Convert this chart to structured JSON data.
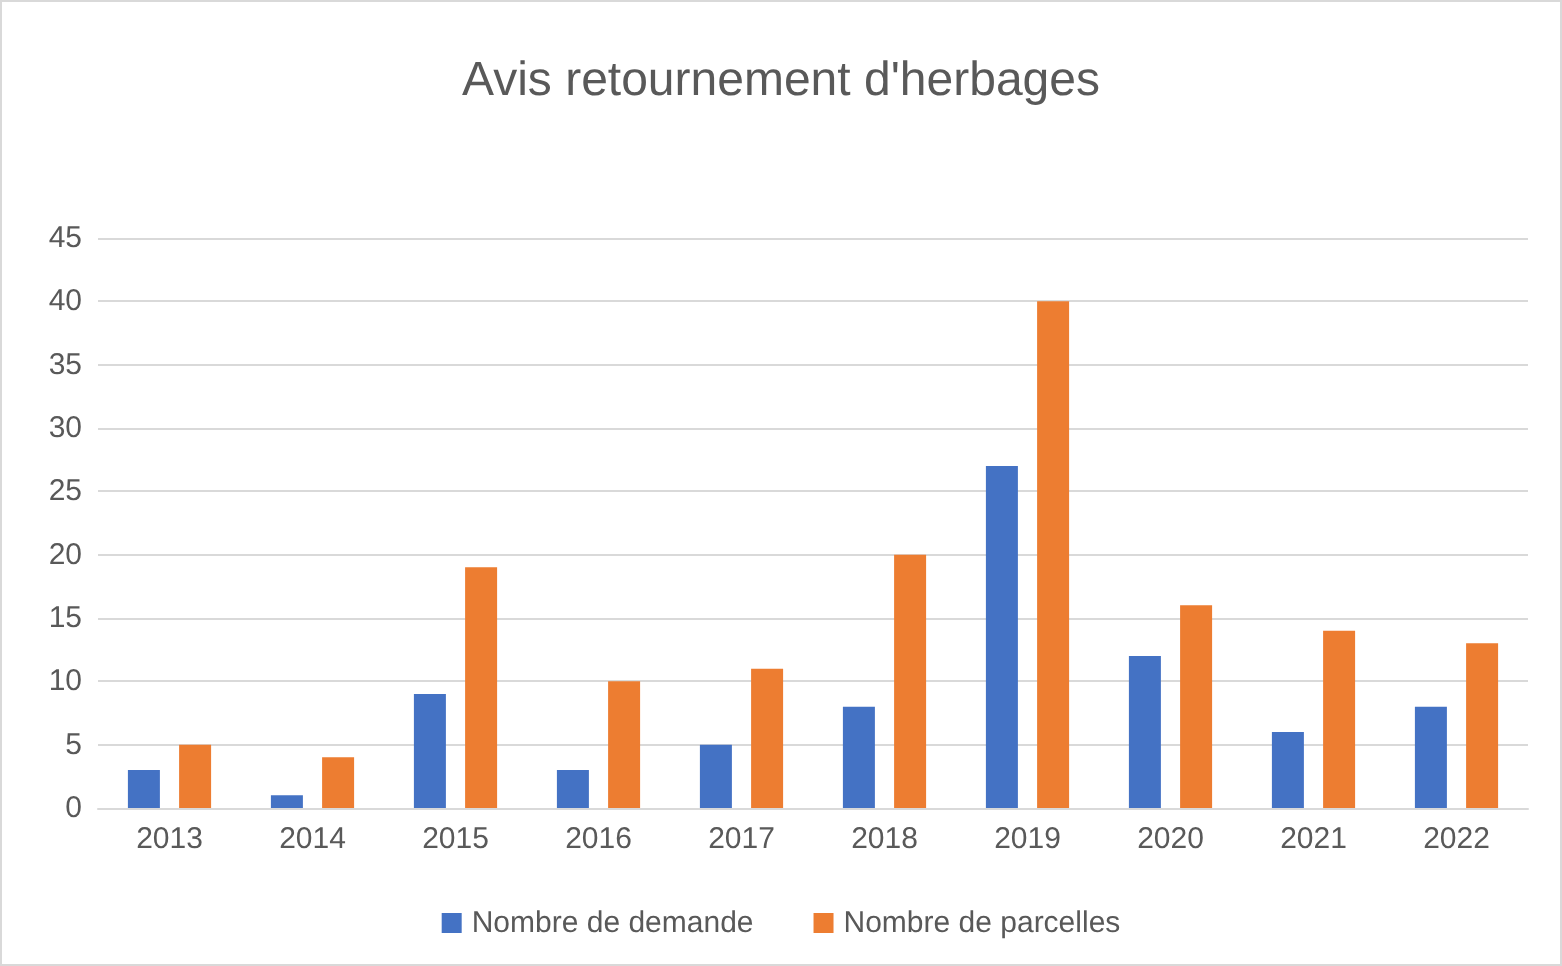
{
  "chart_data": {
    "type": "bar",
    "title": "Avis retournement d'herbages",
    "categories": [
      "2013",
      "2014",
      "2015",
      "2016",
      "2017",
      "2018",
      "2019",
      "2020",
      "2021",
      "2022"
    ],
    "series": [
      {
        "name": "Nombre de demande",
        "color": "#4472c4",
        "values": [
          3,
          1,
          9,
          3,
          5,
          8,
          27,
          12,
          6,
          8
        ]
      },
      {
        "name": "Nombre de parcelles",
        "color": "#ed7d31",
        "values": [
          5,
          4,
          19,
          10,
          11,
          20,
          40,
          16,
          14,
          13
        ]
      }
    ],
    "ylim": [
      0,
      45
    ],
    "yticks": [
      0,
      5,
      10,
      15,
      20,
      25,
      30,
      35,
      40,
      45
    ],
    "grid": "y",
    "legend": "bottom"
  }
}
